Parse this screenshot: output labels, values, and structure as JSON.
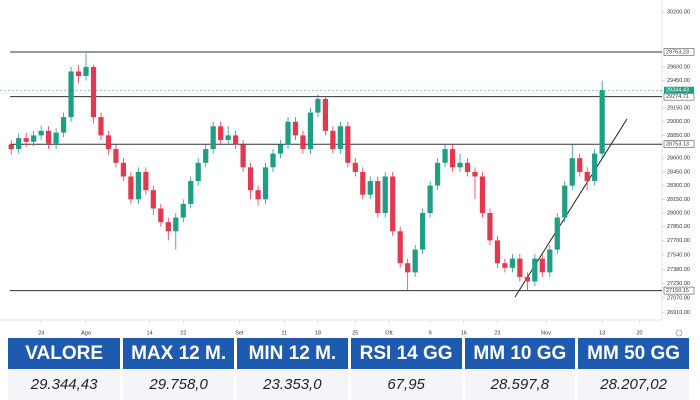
{
  "chart_data": {
    "type": "candlestick",
    "xlim": [
      -1.5,
      87
    ],
    "ylim": [
      26850,
      30300
    ],
    "xticks": [
      {
        "value": 4,
        "label": "24"
      },
      {
        "value": 10,
        "label": "Ago"
      },
      {
        "value": 18.5,
        "label": "14"
      },
      {
        "value": 23,
        "label": "22"
      },
      {
        "value": 30.5,
        "label": "Set"
      },
      {
        "value": 36.5,
        "label": "11"
      },
      {
        "value": 41,
        "label": "18"
      },
      {
        "value": 46,
        "label": "25"
      },
      {
        "value": 50.5,
        "label": "Ott"
      },
      {
        "value": 56,
        "label": "9"
      },
      {
        "value": 60.5,
        "label": "16"
      },
      {
        "value": 65,
        "label": "23"
      },
      {
        "value": 71.5,
        "label": "Nov"
      },
      {
        "value": 79,
        "label": "13"
      },
      {
        "value": 84,
        "label": "20"
      }
    ],
    "yticks": [
      {
        "value": 30200,
        "label": "30200.00"
      },
      {
        "value": 29600,
        "label": "29600.00"
      },
      {
        "value": 29450,
        "label": "29450.00"
      },
      {
        "value": 29150,
        "label": "29150.00"
      },
      {
        "value": 29000,
        "label": "29000.00"
      },
      {
        "value": 28850,
        "label": "28850.00"
      },
      {
        "value": 28600,
        "label": "28600.00"
      },
      {
        "value": 28450,
        "label": "28450.00"
      },
      {
        "value": 28300,
        "label": "28300.00"
      },
      {
        "value": 28150,
        "label": "28150.00"
      },
      {
        "value": 28000,
        "label": "28000.00"
      },
      {
        "value": 27850,
        "label": "27850.00"
      },
      {
        "value": 27700,
        "label": "27700.00"
      },
      {
        "value": 27540,
        "label": "27540.00"
      },
      {
        "value": 27380,
        "label": "27380.00"
      },
      {
        "value": 27230,
        "label": "27230.00"
      },
      {
        "value": 27070,
        "label": "27070.00"
      },
      {
        "value": 26910,
        "label": "26910.00"
      }
    ],
    "levels": [
      {
        "value": 29763.23,
        "label": "29763.23"
      },
      {
        "value": 29274.71,
        "label": "29274.71"
      },
      {
        "value": 28753.13,
        "label": "28753.13"
      },
      {
        "value": 27150.15,
        "label": "27150.15"
      }
    ],
    "last_price": {
      "value": 29344.43,
      "label": "29344.43"
    },
    "up_color": "#1f9e86",
    "down_color": "#e2394f",
    "open": [
      28750,
      28700,
      28820,
      28780,
      28850,
      28900,
      28760,
      28880,
      29050,
      29550,
      29500,
      29600,
      29050,
      28850,
      28700,
      28550,
      28400,
      28150,
      28450,
      28250,
      28050,
      27900,
      27800,
      27950,
      28100,
      28350,
      28550,
      28700,
      28950,
      28800,
      28850,
      28750,
      28500,
      28250,
      28150,
      28500,
      28650,
      28750,
      29000,
      28850,
      28700,
      29100,
      29250,
      28900,
      28700,
      28950,
      28550,
      28450,
      28200,
      28350,
      28000,
      28400,
      27800,
      27450,
      27350,
      27600,
      28000,
      28300,
      28550,
      28700,
      28500,
      28550,
      28450,
      28400,
      28000,
      27700,
      27450,
      27400,
      27500,
      27300,
      27250,
      27500,
      27350,
      27600,
      27950,
      28300,
      28600,
      28450,
      28350,
      28650
    ],
    "high": [
      28800,
      28870,
      28880,
      28900,
      28960,
      28950,
      28930,
      29100,
      29600,
      29620,
      29750,
      29620,
      29100,
      28900,
      28750,
      28600,
      28450,
      28500,
      28500,
      28300,
      28100,
      27950,
      28000,
      28150,
      28400,
      28600,
      28750,
      29000,
      29000,
      28950,
      28900,
      28800,
      28550,
      28300,
      28550,
      28700,
      28800,
      29050,
      29050,
      28900,
      29150,
      29300,
      29280,
      28950,
      29000,
      29000,
      28600,
      28500,
      28400,
      28400,
      28450,
      28450,
      27850,
      27500,
      27650,
      28050,
      28350,
      28600,
      28750,
      28750,
      28650,
      28600,
      28500,
      28450,
      28050,
      27750,
      27500,
      27550,
      27550,
      27350,
      27550,
      27550,
      27650,
      28000,
      28350,
      28750,
      28650,
      28500,
      28700,
      29450
    ],
    "low": [
      28640,
      28650,
      28720,
      28730,
      28800,
      28700,
      28700,
      28830,
      29000,
      29420,
      29450,
      28980,
      28800,
      28640,
      28500,
      28350,
      28100,
      28100,
      28200,
      27980,
      27850,
      27700,
      27600,
      27900,
      28050,
      28300,
      28500,
      28650,
      28750,
      28750,
      28700,
      28450,
      28150,
      28080,
      28100,
      28450,
      28600,
      28700,
      28800,
      28650,
      28650,
      29050,
      28850,
      28650,
      28650,
      28500,
      28400,
      28150,
      28150,
      27950,
      27950,
      27750,
      27400,
      27150,
      27300,
      27550,
      27950,
      28250,
      28500,
      28450,
      28450,
      28400,
      28150,
      27950,
      27650,
      27400,
      27350,
      27350,
      27250,
      27150,
      27200,
      27300,
      27300,
      27550,
      27900,
      28250,
      28400,
      28250,
      28300,
      28600
    ],
    "close": [
      28700,
      28820,
      28780,
      28850,
      28900,
      28760,
      28880,
      29050,
      29550,
      29500,
      29600,
      29050,
      28850,
      28700,
      28550,
      28400,
      28150,
      28450,
      28250,
      28050,
      27900,
      27800,
      27950,
      28100,
      28350,
      28550,
      28700,
      28950,
      28800,
      28850,
      28750,
      28500,
      28250,
      28150,
      28500,
      28650,
      28750,
      29000,
      28850,
      28700,
      29100,
      29250,
      28900,
      28700,
      28950,
      28550,
      28450,
      28200,
      28350,
      28000,
      28400,
      27800,
      27450,
      27350,
      27600,
      28000,
      28300,
      28550,
      28700,
      28500,
      28550,
      28450,
      28400,
      28000,
      27700,
      27450,
      27400,
      27500,
      27300,
      27250,
      27500,
      27350,
      27600,
      27950,
      28300,
      28600,
      28450,
      28350,
      28650,
      29344.43
    ]
  },
  "table": {
    "headers": [
      "VALORE",
      "MAX 12 M.",
      "MIN 12 M.",
      "RSI 14 GG",
      "MM 10 GG",
      "MM 50 GG"
    ],
    "values": [
      "29.344,43",
      "29.758,0",
      "23.353,0",
      "67,95",
      "28.597,8",
      "28.207,02"
    ]
  }
}
